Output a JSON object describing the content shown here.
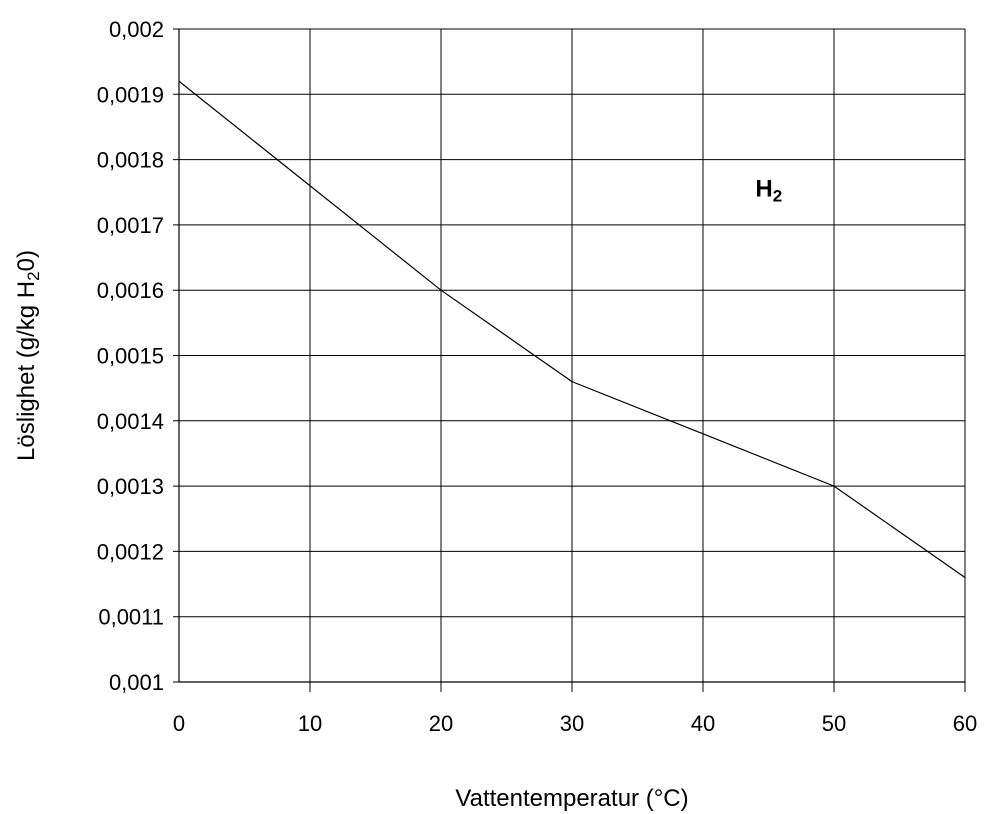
{
  "chart_data": {
    "type": "line",
    "title": "",
    "xlabel": "Vattentemperatur (°C)",
    "ylabel": "Löslighet (g/kg H",
    "ylabel_sub": "2",
    "ylabel_end": "0)",
    "xlim": [
      0,
      60
    ],
    "ylim": [
      0.001,
      0.002
    ],
    "x_ticks": [
      0,
      10,
      20,
      30,
      40,
      50,
      60
    ],
    "x_tick_labels": [
      "0",
      "10",
      "20",
      "30",
      "40",
      "50",
      "60"
    ],
    "y_ticks": [
      0.001,
      0.0011,
      0.0012,
      0.0013,
      0.0014,
      0.0015,
      0.0016,
      0.0017,
      0.0018,
      0.0019,
      0.002
    ],
    "y_tick_labels": [
      "0,001",
      "0,0011",
      "0,0012",
      "0,0013",
      "0,0014",
      "0,0015",
      "0,0016",
      "0,0017",
      "0,0018",
      "0,0019",
      "0,002"
    ],
    "grid": true,
    "annotation": {
      "text": "H",
      "sub": "2",
      "x": 44,
      "y": 0.00175
    },
    "series": [
      {
        "x": [
          0,
          10,
          20,
          30,
          40,
          50,
          60
        ],
        "values": [
          0.00192,
          0.00176,
          0.0016,
          0.00146,
          0.00138,
          0.0013,
          0.00116
        ]
      }
    ]
  }
}
